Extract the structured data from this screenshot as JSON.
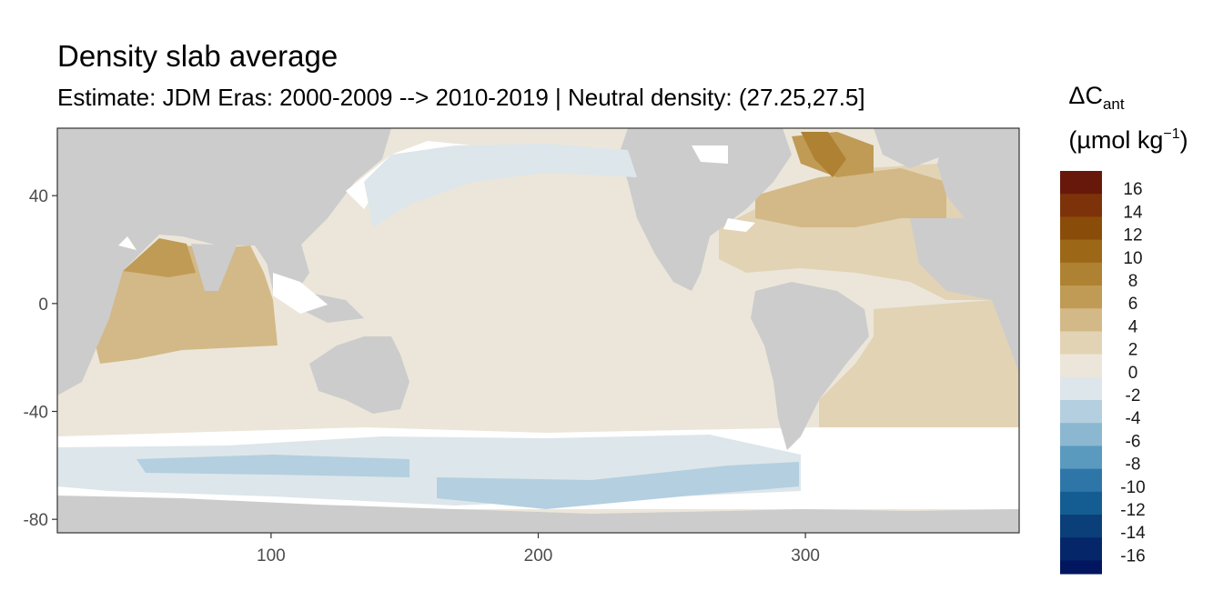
{
  "header": {
    "title": "Density slab average",
    "subtitle": "Estimate: JDM Eras: 2000-2009 --> 2010-2019 | Neutral density: (27.25,27.5]"
  },
  "legend": {
    "title_main": "ΔC",
    "title_sub": "ant",
    "units_left": "(µmol kg",
    "units_sup": "−1",
    "units_right": ")",
    "bins": [
      {
        "label": "16",
        "color": "#67180a"
      },
      {
        "label": "14",
        "color": "#7d3209"
      },
      {
        "label": "12",
        "color": "#8a4d09"
      },
      {
        "label": "10",
        "color": "#9c6817"
      },
      {
        "label": "8",
        "color": "#ae8232"
      },
      {
        "label": "6",
        "color": "#c09b56"
      },
      {
        "label": "4",
        "color": "#d3b987"
      },
      {
        "label": "2",
        "color": "#e2d3b5"
      },
      {
        "label": "0",
        "color": "#ece6da"
      },
      {
        "label": "-2",
        "color": "#dde6ea"
      },
      {
        "label": "-4",
        "color": "#b4cfdf"
      },
      {
        "label": "-6",
        "color": "#8cb7d0"
      },
      {
        "label": "-8",
        "color": "#5a9abf"
      },
      {
        "label": "-10",
        "color": "#2f76a8"
      },
      {
        "label": "-12",
        "color": "#145d92"
      },
      {
        "label": "-14",
        "color": "#0b3f7a"
      },
      {
        "label": "-16",
        "color": "#05276a"
      }
    ],
    "extra_bottom_color": "#021660"
  },
  "axes": {
    "x_ticks": [
      {
        "value": 100,
        "label": "100"
      },
      {
        "value": 200,
        "label": "200"
      },
      {
        "value": 300,
        "label": "300"
      }
    ],
    "y_ticks": [
      {
        "value": 40,
        "label": "40"
      },
      {
        "value": 0,
        "label": "0"
      },
      {
        "value": -40,
        "label": "-40"
      },
      {
        "value": -80,
        "label": "-80"
      }
    ],
    "xlim": [
      20,
      380
    ],
    "ylim": [
      -85,
      65
    ]
  },
  "colors": {
    "land": "#cccccc",
    "missing": "#ffffff",
    "panel_border": "#333333"
  }
}
